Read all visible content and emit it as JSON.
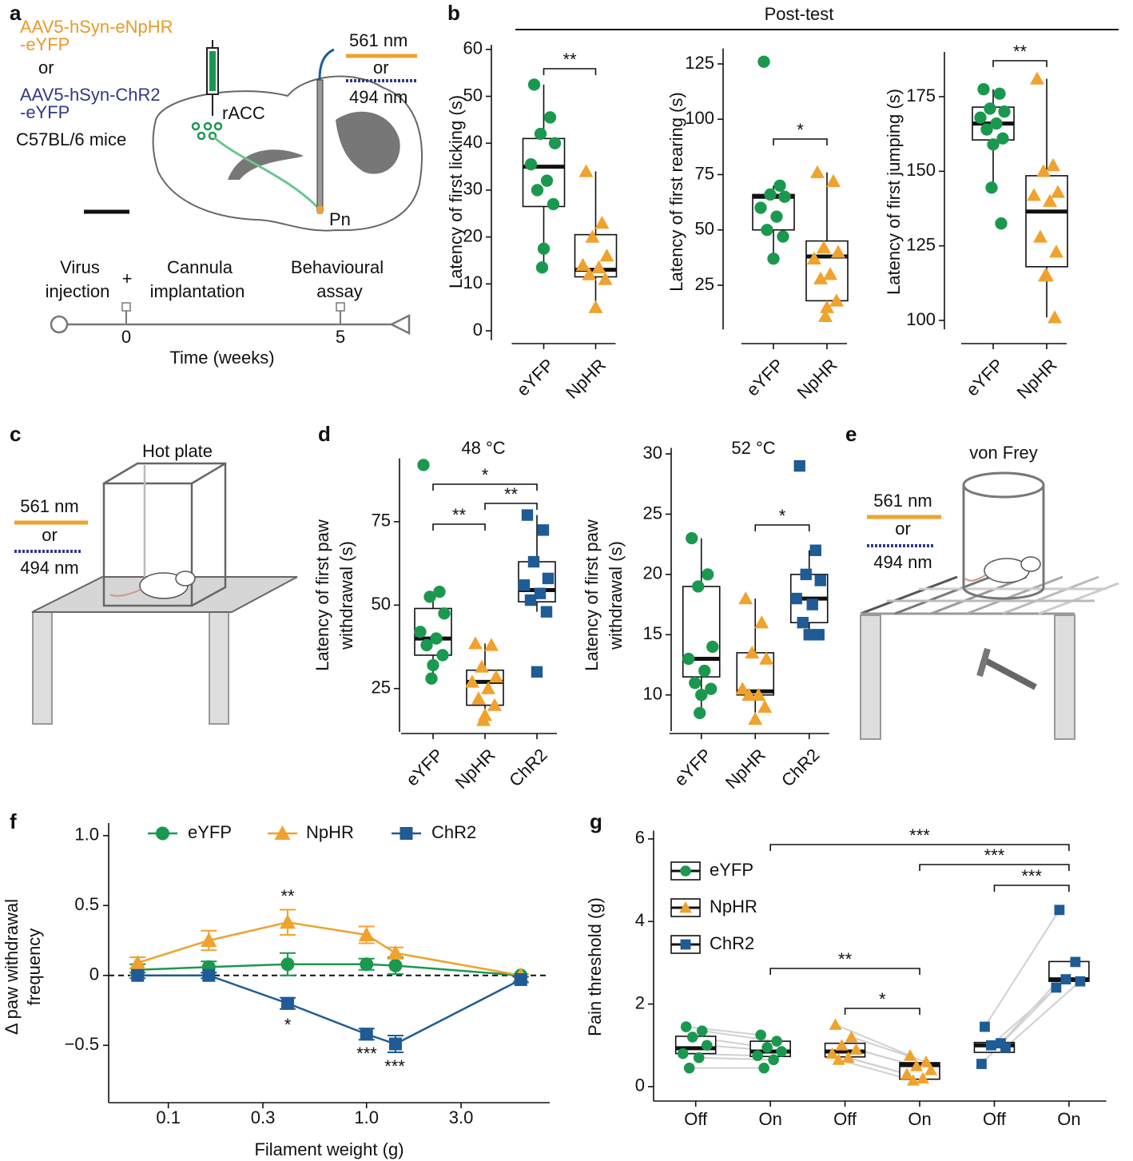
{
  "panel_labels": [
    "a",
    "b",
    "c",
    "d",
    "e",
    "f",
    "g"
  ],
  "diagrams": {
    "a": {
      "virus1": [
        "AAV5-hSyn-eNpHR",
        "-eYFP"
      ],
      "or": "or",
      "virus2": [
        "AAV5-hSyn-ChR2",
        "-eYFP"
      ],
      "mice": "C57BL/6 mice",
      "region1": "rACC",
      "region2": "Pn",
      "light1": "561 nm",
      "light_or": "or",
      "light2": "494 nm",
      "timeline": {
        "events": [
          [
            "Virus",
            "injection"
          ],
          [
            "Cannula",
            "implantation"
          ],
          [
            "Behavioural",
            "assay"
          ]
        ],
        "plus": "+",
        "ticks": [
          0,
          5
        ],
        "xlabel": "Time (weeks)"
      }
    },
    "b": {
      "title": "Post-test"
    },
    "c": {
      "title": "Hot plate",
      "light1": "561 nm",
      "light_or": "or",
      "light2": "494 nm"
    },
    "e": {
      "title": "von Frey",
      "light1": "561 nm",
      "light_or": "or",
      "light2": "494 nm"
    }
  },
  "chart_data": [
    {
      "type": "box",
      "ylabel": "Latency of first licking (s)",
      "categories": [
        "eYFP",
        "NpHR"
      ],
      "colors": [
        "#1a9850",
        "#f0a22e"
      ],
      "markers": [
        "circle",
        "triangle"
      ],
      "ylim": [
        -2,
        61
      ],
      "yticks": [
        0,
        10,
        20,
        30,
        40,
        50,
        60
      ],
      "boxes": [
        {
          "q1": 26.5,
          "median": 35,
          "q3": 41,
          "whisker_low": 13.5,
          "whisker_high": 52.5,
          "points": [
            52.5,
            45.5,
            42,
            40,
            35.5,
            32,
            30,
            27,
            17.5,
            13.5
          ]
        },
        {
          "q1": 11.5,
          "median": 13,
          "q3": 20.5,
          "whisker_low": 5,
          "whisker_high": 34,
          "points": [
            34,
            23,
            20,
            16,
            14,
            13.5,
            12,
            11,
            5
          ]
        }
      ],
      "significance": [
        {
          "pair": [
            0,
            1
          ],
          "label": "**"
        }
      ]
    },
    {
      "type": "box",
      "ylabel": "Latency of first rearing (s)",
      "categories": [
        "eYFP",
        "NpHR"
      ],
      "colors": [
        "#1a9850",
        "#f0a22e"
      ],
      "markers": [
        "circle",
        "triangle"
      ],
      "ylim": [
        5,
        132
      ],
      "yticks": [
        25,
        50,
        75,
        100,
        125
      ],
      "boxes": [
        {
          "q1": 50,
          "median": 65,
          "q3": 66,
          "whisker_low": 37,
          "whisker_high": 70,
          "points": [
            126,
            70,
            66,
            65,
            60,
            56,
            50,
            47,
            37
          ]
        },
        {
          "q1": 18,
          "median": 38,
          "q3": 45,
          "whisker_low": 11,
          "whisker_high": 76,
          "points": [
            76,
            72,
            42,
            40,
            37,
            30,
            28,
            18,
            15,
            11
          ]
        }
      ],
      "significance": [
        {
          "pair": [
            0,
            1
          ],
          "label": "*"
        }
      ]
    },
    {
      "type": "box",
      "ylabel": "Latency of first jumping (s)",
      "categories": [
        "eYFP",
        "NpHR"
      ],
      "colors": [
        "#1a9850",
        "#f0a22e"
      ],
      "markers": [
        "circle",
        "triangle"
      ],
      "ylim": [
        97,
        190
      ],
      "yticks": [
        100,
        125,
        150,
        175
      ],
      "boxes": [
        {
          "q1": 160.5,
          "median": 166,
          "q3": 171.5,
          "whisker_low": 144.5,
          "whisker_high": 177.5,
          "points": [
            177.5,
            176,
            171,
            170,
            168,
            166,
            164,
            161,
            159,
            144.5,
            132.5
          ]
        },
        {
          "q1": 118,
          "median": 136.5,
          "q3": 148.5,
          "whisker_low": 101,
          "whisker_high": 181,
          "points": [
            181,
            152,
            150,
            143,
            142,
            140,
            128,
            123,
            115,
            115,
            101
          ]
        }
      ],
      "significance": [
        {
          "pair": [
            0,
            1
          ],
          "label": "**"
        }
      ]
    },
    {
      "type": "box",
      "title": "48 °C",
      "ylabel": [
        "Latency of first paw",
        "withdrawal (s)"
      ],
      "categories": [
        "eYFP",
        "NpHR",
        "ChR2"
      ],
      "colors": [
        "#1a9850",
        "#f0a22e",
        "#1f5b95"
      ],
      "markers": [
        "circle",
        "triangle",
        "square"
      ],
      "ylim": [
        12,
        94
      ],
      "yticks": [
        25,
        50,
        75
      ],
      "boxes": [
        {
          "q1": 35,
          "median": 40,
          "q3": 49,
          "whisker_low": 28,
          "whisker_high": 54,
          "points": [
            92,
            54,
            52.5,
            47.5,
            42,
            40,
            38,
            35,
            32,
            28
          ]
        },
        {
          "q1": 20,
          "median": 27,
          "q3": 30.5,
          "whisker_low": 15.5,
          "whisker_high": 38.5,
          "points": [
            38.5,
            38,
            31.5,
            28.5,
            27,
            25,
            22,
            20,
            17,
            15.5
          ]
        },
        {
          "q1": 51,
          "median": 54.5,
          "q3": 63,
          "whisker_low": 48,
          "whisker_high": 77,
          "points": [
            77,
            72.5,
            63,
            58,
            56,
            53.5,
            51.5,
            48,
            30
          ]
        }
      ],
      "significance": [
        {
          "pair": [
            0,
            2
          ],
          "label": "*"
        },
        {
          "pair": [
            0,
            1
          ],
          "label": "**"
        },
        {
          "pair": [
            1,
            2
          ],
          "label": "**"
        }
      ]
    },
    {
      "type": "box",
      "title": "52 °C",
      "ylabel": [
        "Latency of first paw",
        "withdrawal (s)"
      ],
      "categories": [
        "eYFP",
        "NpHR",
        "ChR2"
      ],
      "colors": [
        "#1a9850",
        "#f0a22e",
        "#1f5b95"
      ],
      "markers": [
        "circle",
        "triangle",
        "square"
      ],
      "ylim": [
        7,
        30.5
      ],
      "yticks": [
        10,
        15,
        20,
        25,
        30
      ],
      "boxes": [
        {
          "q1": 11.5,
          "median": 13,
          "q3": 19,
          "whisker_low": 8.5,
          "whisker_high": 23,
          "points": [
            23,
            20,
            19,
            14,
            13,
            12,
            11,
            10.5,
            10,
            8.5
          ]
        },
        {
          "q1": 10,
          "median": 10.3,
          "q3": 13.5,
          "whisker_low": 8,
          "whisker_high": 18,
          "points": [
            18,
            16,
            13.5,
            13,
            10.5,
            10,
            10,
            9,
            8
          ]
        },
        {
          "q1": 16,
          "median": 18,
          "q3": 20,
          "whisker_low": 15,
          "whisker_high": 22,
          "points": [
            29,
            22,
            20,
            19.5,
            18,
            17.5,
            16,
            15,
            15
          ]
        }
      ],
      "significance": [
        {
          "pair": [
            1,
            2
          ],
          "label": "*"
        }
      ]
    },
    {
      "type": "line",
      "xlabel": "Filament weight (g)",
      "ylabel": [
        "Δ paw withdrawal",
        "frequency"
      ],
      "x": [
        0.07,
        0.16,
        0.4,
        1,
        1.4,
        6
      ],
      "xlog": true,
      "xlim": [
        0.05,
        8.4
      ],
      "xticks": [
        0.1,
        0.3,
        {
          "value": 1,
          "label": "1.0"
        },
        {
          "value": 3,
          "label": "3.0"
        }
      ],
      "ylim": [
        -0.91,
        1.09
      ],
      "yticks": [
        {
          "value": -0.5,
          "label": "−0.5"
        },
        0,
        0.5,
        {
          "value": 1,
          "label": "1.0"
        }
      ],
      "reference_line": 0,
      "series": [
        {
          "name": "eYFP",
          "color": "#1a9850",
          "marker": "circle",
          "values": [
            0.04,
            0.06,
            0.08,
            0.08,
            0.07,
            0
          ],
          "errors": [
            0.04,
            0.04,
            0.08,
            0.04,
            0.06,
            0.01
          ]
        },
        {
          "name": "NpHR",
          "color": "#f0a22e",
          "marker": "triangle",
          "values": [
            0.09,
            0.25,
            0.38,
            0.29,
            0.16,
            0
          ],
          "errors": [
            0.04,
            0.07,
            0.09,
            0.06,
            0.04,
            0.01
          ]
        },
        {
          "name": "ChR2",
          "color": "#1f5b95",
          "marker": "square",
          "values": [
            0,
            0,
            -0.2,
            -0.42,
            -0.49,
            -0.03
          ],
          "errors": [
            0.02,
            0.02,
            0.04,
            0.04,
            0.06,
            0.02
          ]
        }
      ],
      "annotations": [
        "**",
        "*",
        "***",
        "***"
      ]
    },
    {
      "type": "box",
      "ylabel": "Pain threshold (g)",
      "categories": [
        "Off",
        "On",
        "Off",
        "On",
        "Off",
        "On"
      ],
      "paired": true,
      "series": [
        {
          "name": "eYFP",
          "color": "#1a9850",
          "marker": "circle"
        },
        {
          "name": "NpHR",
          "color": "#f0a22e",
          "marker": "triangle"
        },
        {
          "name": "ChR2",
          "color": "#1f5b95",
          "marker": "square"
        }
      ],
      "ylim": [
        -0.35,
        6.2
      ],
      "yticks": [
        0,
        2,
        4,
        6
      ],
      "boxes": [
        {
          "q1": 0.8,
          "median": 0.93,
          "q3": 1.22,
          "points": [
            1.45,
            1.35,
            1.2,
            1,
            0.8,
            0.7,
            0.45
          ]
        },
        {
          "q1": 0.73,
          "median": 0.85,
          "q3": 1.1,
          "points": [
            1.25,
            1.1,
            0.95,
            0.85,
            0.75,
            0.65,
            0.45
          ]
        },
        {
          "q1": 0.72,
          "median": 0.85,
          "q3": 1.05,
          "points": [
            1.5,
            1.2,
            1,
            0.9,
            0.8,
            0.7,
            0.65
          ]
        },
        {
          "q1": 0.18,
          "median": 0.52,
          "q3": 0.58,
          "points": [
            0.75,
            0.6,
            0.5,
            0.4,
            0.3,
            0.2,
            0.15
          ]
        },
        {
          "q1": 0.83,
          "median": 1,
          "q3": 1.07,
          "points": [
            1.45,
            1.05,
            1,
            0.95,
            0.55
          ]
        },
        {
          "q1": 2.55,
          "median": 2.6,
          "q3": 3.03,
          "points": [
            4.28,
            3.02,
            2.6,
            2.55,
            2.4
          ]
        }
      ],
      "significance": [
        {
          "pair": [
            1,
            5
          ],
          "label": "***"
        },
        {
          "pair": [
            3,
            5
          ],
          "label": "***"
        },
        {
          "pair": [
            4,
            5
          ],
          "label": "***"
        },
        {
          "pair": [
            1,
            3
          ],
          "label": "**"
        },
        {
          "pair": [
            2,
            3
          ],
          "label": "*"
        }
      ]
    }
  ]
}
